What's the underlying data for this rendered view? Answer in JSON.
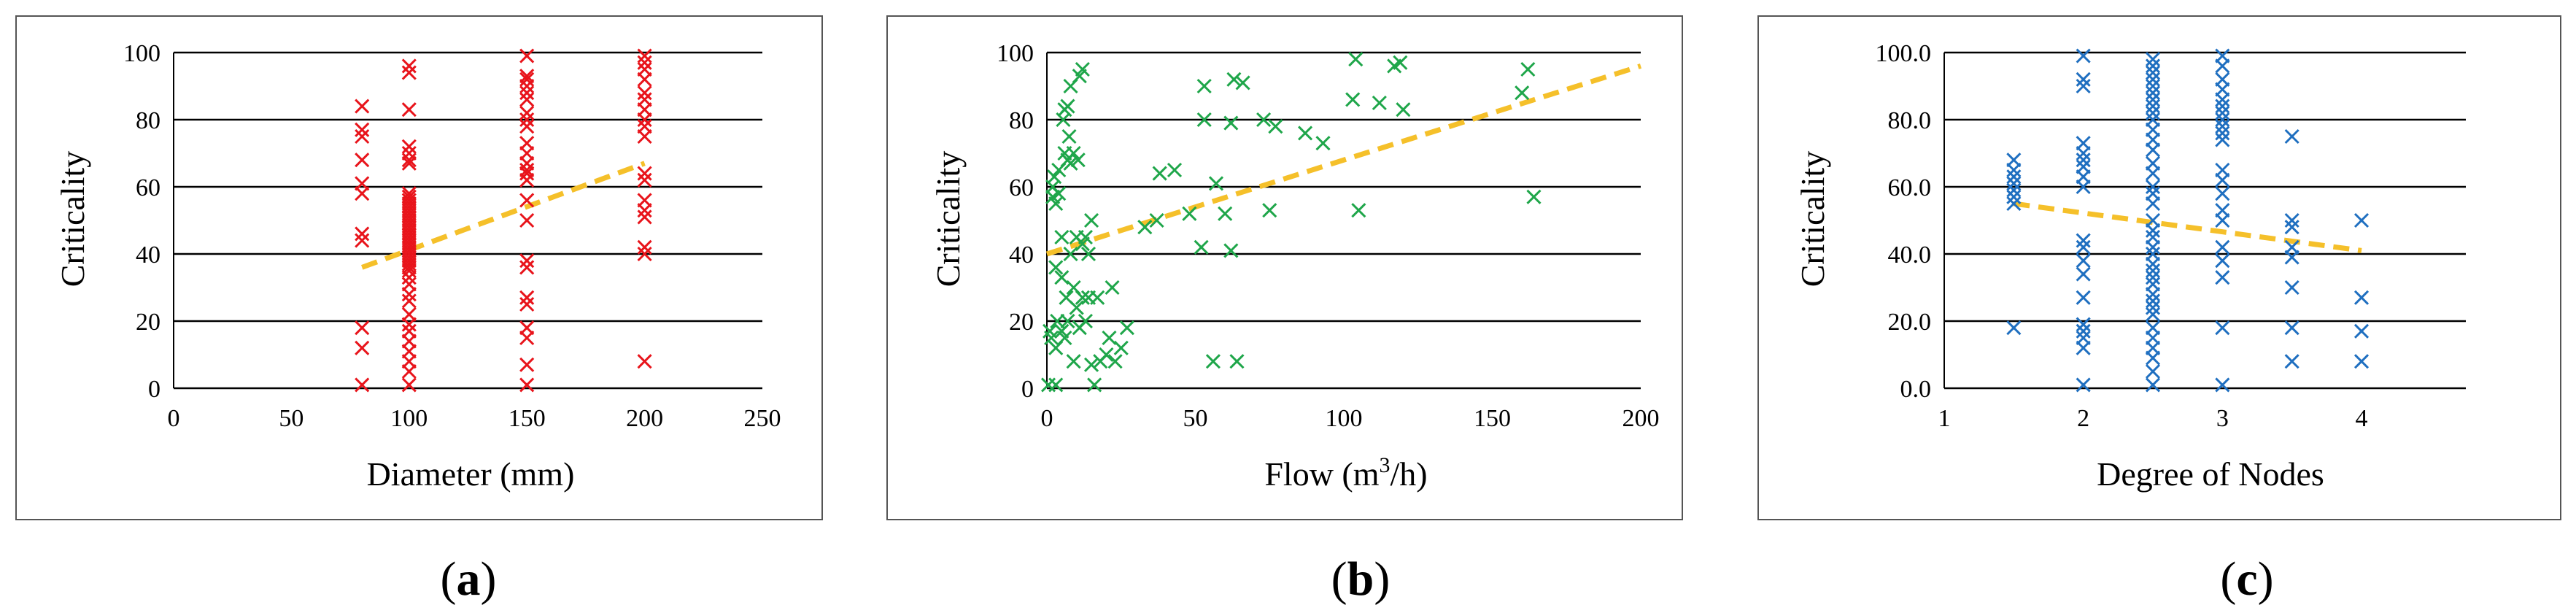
{
  "figure": {
    "captions": [
      {
        "open": "(",
        "letter": "a",
        "close": ")"
      },
      {
        "open": "(",
        "letter": "b",
        "close": ")"
      },
      {
        "open": "(",
        "letter": "c",
        "close": ")"
      }
    ]
  },
  "chart_data": [
    {
      "type": "scatter",
      "panel": "a",
      "xlabel": "Diameter (mm)",
      "ylabel": "Criticality",
      "xlim": [
        0,
        250
      ],
      "ylim": [
        0,
        100
      ],
      "xticks": [
        0,
        50,
        100,
        150,
        200,
        250
      ],
      "yticks": [
        0,
        20,
        40,
        60,
        80,
        100
      ],
      "xtick_labels": [
        "0",
        "50",
        "100",
        "150",
        "200",
        "250"
      ],
      "ytick_labels": [
        "0",
        "20",
        "40",
        "60",
        "80",
        "100"
      ],
      "grid": "horizontal",
      "marker": "x",
      "color": "#e8141b",
      "trend_color": "#f5c02a",
      "trendline": {
        "x": [
          80,
          200
        ],
        "y": [
          36,
          67
        ]
      },
      "points": [
        [
          80,
          1
        ],
        [
          80,
          12
        ],
        [
          80,
          18
        ],
        [
          80,
          44
        ],
        [
          80,
          46
        ],
        [
          80,
          58
        ],
        [
          80,
          61
        ],
        [
          80,
          68
        ],
        [
          80,
          75
        ],
        [
          80,
          77
        ],
        [
          80,
          84
        ],
        [
          100,
          1
        ],
        [
          100,
          5
        ],
        [
          100,
          8
        ],
        [
          100,
          11
        ],
        [
          100,
          14
        ],
        [
          100,
          17
        ],
        [
          100,
          19
        ],
        [
          100,
          22
        ],
        [
          100,
          26
        ],
        [
          100,
          28
        ],
        [
          100,
          31
        ],
        [
          100,
          33
        ],
        [
          100,
          35
        ],
        [
          100,
          36
        ],
        [
          100,
          37
        ],
        [
          100,
          38
        ],
        [
          100,
          39
        ],
        [
          100,
          40
        ],
        [
          100,
          41
        ],
        [
          100,
          42
        ],
        [
          100,
          43
        ],
        [
          100,
          44
        ],
        [
          100,
          45
        ],
        [
          100,
          46
        ],
        [
          100,
          47
        ],
        [
          100,
          48
        ],
        [
          100,
          49
        ],
        [
          100,
          50
        ],
        [
          100,
          51
        ],
        [
          100,
          52
        ],
        [
          100,
          53
        ],
        [
          100,
          54
        ],
        [
          100,
          55
        ],
        [
          100,
          56
        ],
        [
          100,
          57
        ],
        [
          100,
          58
        ],
        [
          100,
          67
        ],
        [
          100,
          68
        ],
        [
          100,
          70
        ],
        [
          100,
          72
        ],
        [
          100,
          83
        ],
        [
          100,
          94
        ],
        [
          100,
          96
        ],
        [
          150,
          1
        ],
        [
          150,
          7
        ],
        [
          150,
          15
        ],
        [
          150,
          18
        ],
        [
          150,
          25
        ],
        [
          150,
          27
        ],
        [
          150,
          36
        ],
        [
          150,
          38
        ],
        [
          150,
          50
        ],
        [
          150,
          56
        ],
        [
          150,
          62
        ],
        [
          150,
          64
        ],
        [
          150,
          65
        ],
        [
          150,
          67
        ],
        [
          150,
          70
        ],
        [
          150,
          73
        ],
        [
          150,
          78
        ],
        [
          150,
          80
        ],
        [
          150,
          82
        ],
        [
          150,
          86
        ],
        [
          150,
          88
        ],
        [
          150,
          90
        ],
        [
          150,
          92
        ],
        [
          150,
          93
        ],
        [
          150,
          99
        ],
        [
          200,
          8
        ],
        [
          200,
          40
        ],
        [
          200,
          42
        ],
        [
          200,
          51
        ],
        [
          200,
          53
        ],
        [
          200,
          56
        ],
        [
          200,
          62
        ],
        [
          200,
          64
        ],
        [
          200,
          75
        ],
        [
          200,
          78
        ],
        [
          200,
          80
        ],
        [
          200,
          83
        ],
        [
          200,
          86
        ],
        [
          200,
          88
        ],
        [
          200,
          92
        ],
        [
          200,
          95
        ],
        [
          200,
          97
        ],
        [
          200,
          99
        ]
      ]
    },
    {
      "type": "scatter",
      "panel": "b",
      "xlabel_main": "Flow (m",
      "xlabel_sup": "3",
      "xlabel_end": "/h)",
      "ylabel": "Criticality",
      "xlim": [
        0,
        200
      ],
      "ylim": [
        0,
        100
      ],
      "xticks": [
        0,
        50,
        100,
        150,
        200
      ],
      "yticks": [
        0,
        20,
        40,
        60,
        80,
        100
      ],
      "xtick_labels": [
        "0",
        "50",
        "100",
        "150",
        "200"
      ],
      "ytick_labels": [
        "0",
        "20",
        "40",
        "60",
        "80",
        "100"
      ],
      "grid": "horizontal",
      "marker": "x",
      "color": "#1fa64a",
      "trend_color": "#f5c02a",
      "trendline": {
        "x": [
          0,
          200
        ],
        "y": [
          40,
          96
        ]
      },
      "points": [
        [
          0.5,
          1
        ],
        [
          1,
          17
        ],
        [
          1.5,
          15
        ],
        [
          2,
          57
        ],
        [
          2,
          60
        ],
        [
          2.5,
          63
        ],
        [
          3,
          1
        ],
        [
          3,
          12
        ],
        [
          3,
          36
        ],
        [
          3,
          55
        ],
        [
          3.5,
          20
        ],
        [
          4,
          65
        ],
        [
          4,
          58
        ],
        [
          5,
          33
        ],
        [
          5,
          45
        ],
        [
          5,
          17
        ],
        [
          5.5,
          80
        ],
        [
          6,
          83
        ],
        [
          6,
          70
        ],
        [
          6,
          15
        ],
        [
          6.5,
          27
        ],
        [
          7,
          84
        ],
        [
          7,
          68
        ],
        [
          7,
          20
        ],
        [
          7.5,
          75
        ],
        [
          8,
          40
        ],
        [
          8,
          67
        ],
        [
          8,
          90
        ],
        [
          9,
          30
        ],
        [
          9,
          70
        ],
        [
          9,
          8
        ],
        [
          10,
          45
        ],
        [
          10,
          24
        ],
        [
          10.5,
          68
        ],
        [
          11,
          93
        ],
        [
          11,
          18
        ],
        [
          12,
          95
        ],
        [
          12,
          43
        ],
        [
          12,
          27
        ],
        [
          13,
          45
        ],
        [
          13,
          20
        ],
        [
          14,
          40
        ],
        [
          14,
          27
        ],
        [
          15,
          50
        ],
        [
          15,
          7
        ],
        [
          16,
          1
        ],
        [
          17,
          27
        ],
        [
          18,
          8
        ],
        [
          20,
          10
        ],
        [
          21,
          15
        ],
        [
          22,
          30
        ],
        [
          23,
          8
        ],
        [
          25,
          12
        ],
        [
          27,
          18
        ],
        [
          33,
          48
        ],
        [
          37,
          50
        ],
        [
          38,
          64
        ],
        [
          43,
          65
        ],
        [
          48,
          52
        ],
        [
          52,
          42
        ],
        [
          53,
          80
        ],
        [
          53,
          90
        ],
        [
          56,
          8
        ],
        [
          57,
          61
        ],
        [
          60,
          52
        ],
        [
          62,
          41
        ],
        [
          62,
          79
        ],
        [
          63,
          92
        ],
        [
          64,
          8
        ],
        [
          66,
          91
        ],
        [
          73,
          80
        ],
        [
          75,
          53
        ],
        [
          77,
          78
        ],
        [
          87,
          76
        ],
        [
          93,
          73
        ],
        [
          103,
          86
        ],
        [
          104,
          98
        ],
        [
          105,
          53
        ],
        [
          112,
          85
        ],
        [
          117,
          96
        ],
        [
          119,
          97
        ],
        [
          120,
          83
        ],
        [
          160,
          88
        ],
        [
          162,
          95
        ],
        [
          164,
          57
        ]
      ]
    },
    {
      "type": "scatter",
      "panel": "c",
      "xlabel": "Degree of Nodes",
      "ylabel": "Criticality",
      "xlim": [
        1,
        4.75
      ],
      "ylim": [
        0,
        100
      ],
      "xticks": [
        1,
        2,
        3,
        4
      ],
      "yticks": [
        0,
        20,
        40,
        60,
        80,
        100
      ],
      "xtick_labels": [
        "1",
        "2",
        "3",
        "4"
      ],
      "ytick_labels": [
        "0.0",
        "20.0",
        "40.0",
        "60.0",
        "80.0",
        "100.0"
      ],
      "grid": "horizontal",
      "marker": "x",
      "color": "#1f6fc0",
      "trend_color": "#f5c02a",
      "trendline": {
        "x": [
          1.5,
          4
        ],
        "y": [
          55,
          41
        ]
      },
      "points": [
        [
          1.5,
          18
        ],
        [
          1.5,
          55
        ],
        [
          1.5,
          57
        ],
        [
          1.5,
          59
        ],
        [
          1.5,
          61
        ],
        [
          1.5,
          63
        ],
        [
          1.5,
          65
        ],
        [
          1.5,
          68
        ],
        [
          2,
          1
        ],
        [
          2,
          12
        ],
        [
          2,
          15
        ],
        [
          2,
          17
        ],
        [
          2,
          19
        ],
        [
          2,
          27
        ],
        [
          2,
          34
        ],
        [
          2,
          38
        ],
        [
          2,
          42
        ],
        [
          2,
          44
        ],
        [
          2,
          60
        ],
        [
          2,
          63
        ],
        [
          2,
          66
        ],
        [
          2,
          68
        ],
        [
          2,
          70
        ],
        [
          2,
          73
        ],
        [
          2,
          90
        ],
        [
          2,
          92
        ],
        [
          2,
          99
        ],
        [
          2.5,
          1
        ],
        [
          2.5,
          5
        ],
        [
          2.5,
          9
        ],
        [
          2.5,
          12
        ],
        [
          2.5,
          15
        ],
        [
          2.5,
          18
        ],
        [
          2.5,
          22
        ],
        [
          2.5,
          24
        ],
        [
          2.5,
          26
        ],
        [
          2.5,
          28
        ],
        [
          2.5,
          31
        ],
        [
          2.5,
          33
        ],
        [
          2.5,
          35
        ],
        [
          2.5,
          37
        ],
        [
          2.5,
          40
        ],
        [
          2.5,
          42
        ],
        [
          2.5,
          45
        ],
        [
          2.5,
          47
        ],
        [
          2.5,
          50
        ],
        [
          2.5,
          55
        ],
        [
          2.5,
          58
        ],
        [
          2.5,
          60
        ],
        [
          2.5,
          64
        ],
        [
          2.5,
          67
        ],
        [
          2.5,
          71
        ],
        [
          2.5,
          74
        ],
        [
          2.5,
          77
        ],
        [
          2.5,
          80
        ],
        [
          2.5,
          82
        ],
        [
          2.5,
          84
        ],
        [
          2.5,
          86
        ],
        [
          2.5,
          88
        ],
        [
          2.5,
          90
        ],
        [
          2.5,
          92
        ],
        [
          2.5,
          94
        ],
        [
          2.5,
          96
        ],
        [
          2.5,
          98
        ],
        [
          3,
          1
        ],
        [
          3,
          18
        ],
        [
          3,
          33
        ],
        [
          3,
          38
        ],
        [
          3,
          42
        ],
        [
          3,
          50
        ],
        [
          3,
          53
        ],
        [
          3,
          58
        ],
        [
          3,
          62
        ],
        [
          3,
          65
        ],
        [
          3,
          74
        ],
        [
          3,
          76
        ],
        [
          3,
          78
        ],
        [
          3,
          80
        ],
        [
          3,
          82
        ],
        [
          3,
          84
        ],
        [
          3,
          86
        ],
        [
          3,
          89
        ],
        [
          3,
          92
        ],
        [
          3,
          96
        ],
        [
          3,
          99
        ],
        [
          3.5,
          8
        ],
        [
          3.5,
          18
        ],
        [
          3.5,
          30
        ],
        [
          3.5,
          39
        ],
        [
          3.5,
          42
        ],
        [
          3.5,
          48
        ],
        [
          3.5,
          50
        ],
        [
          3.5,
          75
        ],
        [
          4,
          8
        ],
        [
          4,
          17
        ],
        [
          4,
          27
        ],
        [
          4,
          50
        ]
      ]
    }
  ]
}
